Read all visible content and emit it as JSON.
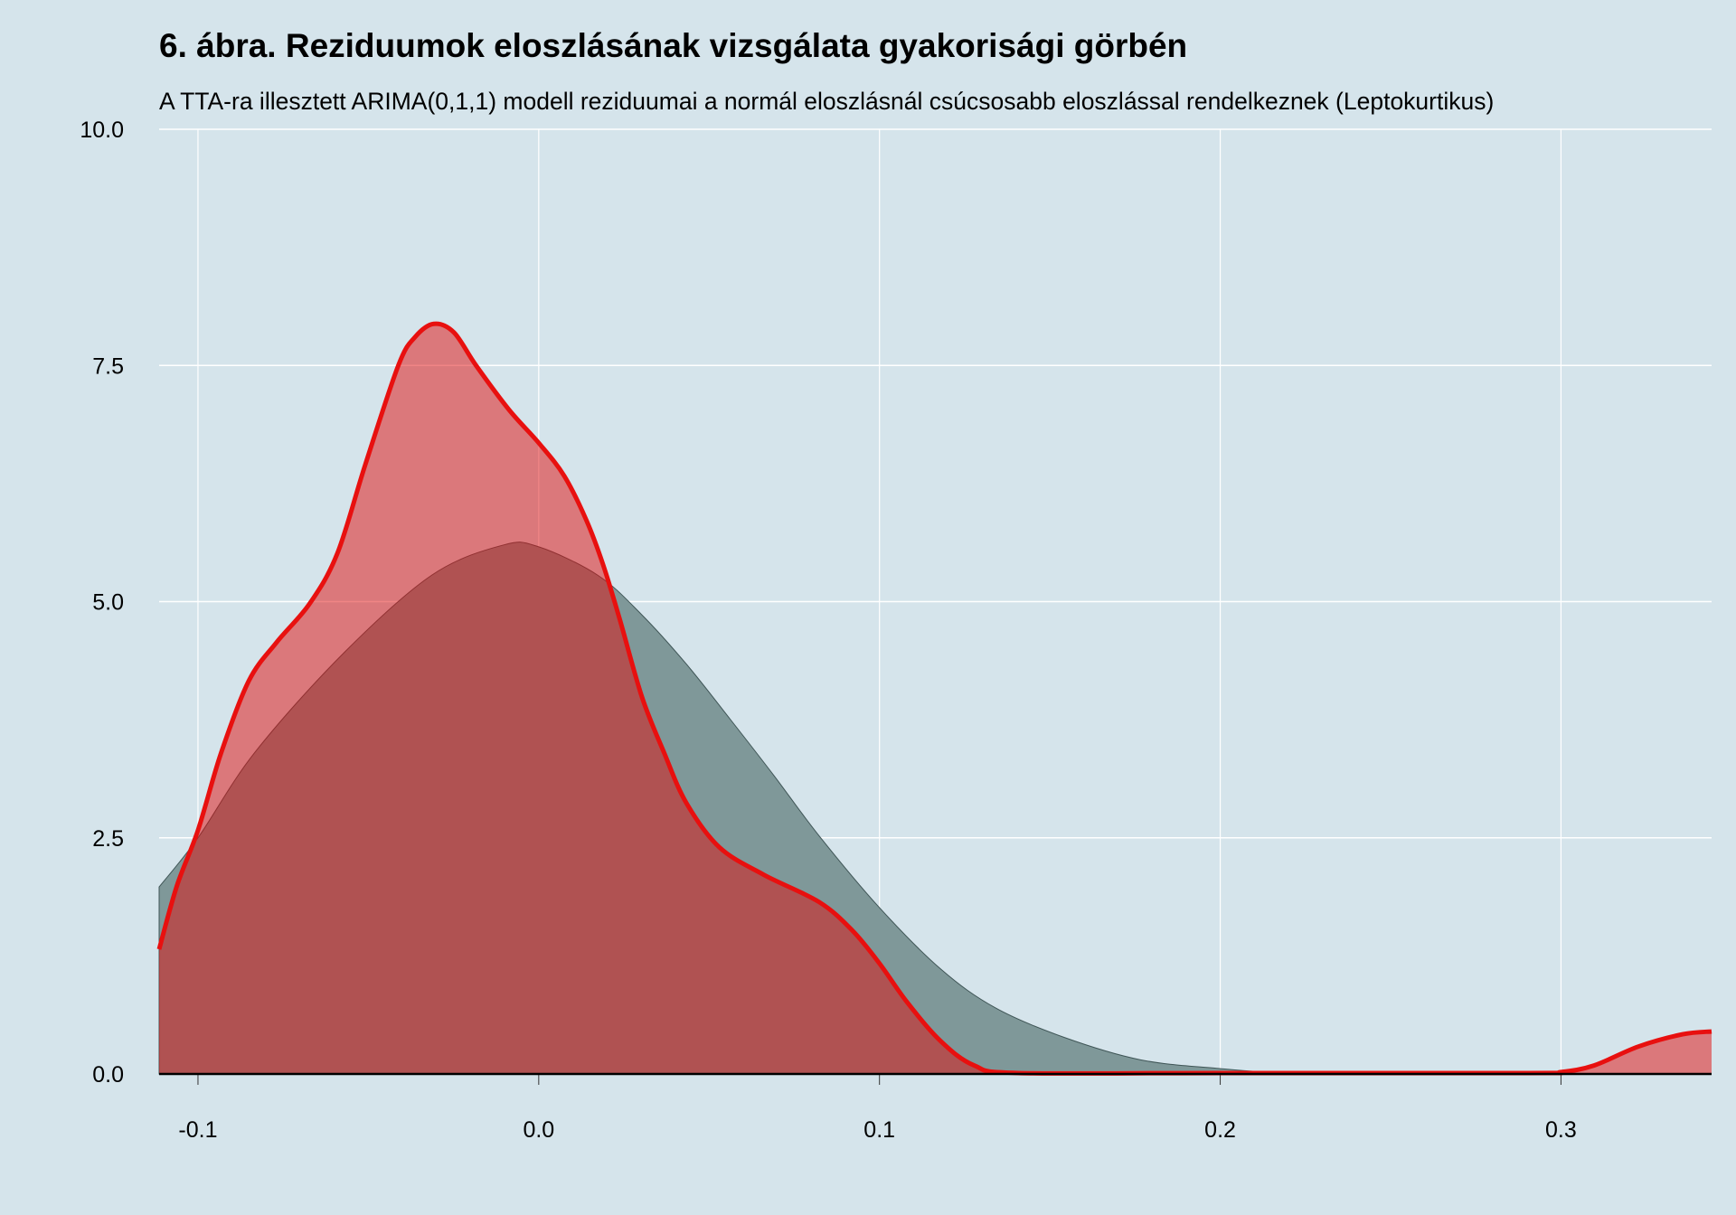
{
  "chart_data": {
    "type": "area",
    "title": "6. ábra. Reziduumok eloszlásának vizsgálata gyakorisági görbén",
    "subtitle": "A TTA-ra illesztett ARIMA(0,1,1) modell reziduumai a normál eloszlásnál csúcsosabb eloszlással rendelkeznek (Leptokurtikus)",
    "xlabel": "",
    "ylabel": "",
    "xlim": [
      -0.1114,
      0.3442
    ],
    "ylim": [
      0,
      10
    ],
    "x_ticks": [
      -0.1,
      0.0,
      0.1,
      0.2,
      0.3
    ],
    "x_tick_labels": [
      "-0.1",
      "0.0",
      "0.1",
      "0.2",
      "0.3"
    ],
    "y_ticks": [
      0,
      2.5,
      5,
      7.5,
      10
    ],
    "y_tick_labels": [
      "0.0",
      "2.5",
      "5.0",
      "7.5",
      "10.0"
    ],
    "grid": true,
    "legend": "none",
    "colors": {
      "background": "#d5e4eb",
      "gray_fill": "#7f9899",
      "gray_outline": "#3f5556",
      "red_fill": "#e20c0c",
      "red_line": "#e8100f",
      "grid": "#ffffff"
    },
    "series": [
      {
        "x": [
          -0.1114,
          -0.1,
          -0.0834,
          -0.0574,
          -0.0314,
          -0.0103,
          0.0,
          0.0173,
          0.03,
          0.0433,
          0.0563,
          0.069,
          0.0823,
          0.1,
          0.118,
          0.134,
          0.154,
          0.1766,
          0.199,
          0.219,
          0.25,
          0.3,
          0.3442
        ],
        "y": [
          1.98,
          2.5,
          3.4,
          4.45,
          5.28,
          5.6,
          5.58,
          5.28,
          4.87,
          4.34,
          3.75,
          3.16,
          2.52,
          1.76,
          1.11,
          0.7,
          0.39,
          0.15,
          0.06,
          0.01,
          0,
          0,
          0
        ]
      },
      {
        "x": [
          -0.1114,
          -0.1062,
          -0.1,
          -0.0932,
          -0.0851,
          -0.0769,
          -0.0672,
          -0.0591,
          -0.0509,
          -0.0412,
          -0.0363,
          -0.0308,
          -0.0249,
          -0.0184,
          -0.0087,
          0.0,
          0.0075,
          0.014,
          0.0189,
          0.0238,
          0.0303,
          0.0368,
          0.0433,
          0.053,
          0.066,
          0.0823,
          0.092,
          0.1,
          0.1081,
          0.1179,
          0.1278,
          0.1408,
          0.2,
          0.2903,
          0.3,
          0.3097,
          0.3227,
          0.3357,
          0.3442
        ],
        "y": [
          1.32,
          1.99,
          2.58,
          3.4,
          4.16,
          4.57,
          4.98,
          5.51,
          6.45,
          7.5,
          7.8,
          7.94,
          7.85,
          7.5,
          7.03,
          6.68,
          6.33,
          5.86,
          5.39,
          4.81,
          3.99,
          3.4,
          2.87,
          2.4,
          2.11,
          1.82,
          1.52,
          1.17,
          0.76,
          0.35,
          0.09,
          0.01,
          0.01,
          0.01,
          0.02,
          0.09,
          0.29,
          0.42,
          0.45
        ]
      }
    ]
  }
}
